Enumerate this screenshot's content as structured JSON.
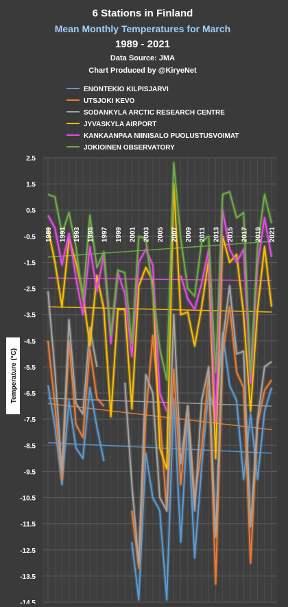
{
  "chart_data": {
    "type": "line",
    "title": "6 Stations in Finland",
    "subtitle": "Mean Monthly Temperatures for March",
    "years_label": "1989 - 2021",
    "source": "Data Source: JMA",
    "credit": "Chart Produced by @KiryeNet",
    "ylabel": "Temperature (°C)",
    "xlabel": "",
    "ylim": [
      -14.5,
      2.5
    ],
    "yticks": [
      "2.5",
      "1.5",
      "0.5",
      "-0.5",
      "-1.5",
      "-2.5",
      "-3.5",
      "-4.5",
      "-5.5",
      "-6.5",
      "-7.5",
      "-8.5",
      "-9.5",
      "-10.5",
      "-11.5",
      "-12.5",
      "-13.5",
      "-14.5"
    ],
    "x": [
      1989,
      1990,
      1991,
      1992,
      1993,
      1994,
      1995,
      1996,
      1997,
      1998,
      1999,
      2000,
      2001,
      2002,
      2003,
      2004,
      2005,
      2006,
      2007,
      2008,
      2009,
      2010,
      2011,
      2012,
      2013,
      2014,
      2015,
      2016,
      2017,
      2018,
      2019,
      2020,
      2021
    ],
    "xtick_labels": [
      "1989",
      "1991",
      "1993",
      "1995",
      "1997",
      "1999",
      "2001",
      "2003",
      "2005",
      "2007",
      "2009",
      "2011",
      "2013",
      "2015",
      "2017",
      "2019",
      "2021"
    ],
    "grid": true,
    "legend_position": "top",
    "series": [
      {
        "name": "ENONTEKIO KILPISJARVI",
        "color": "#5b9bd5",
        "values": [
          -6.2,
          -7.8,
          -10.0,
          -6.8,
          -8.6,
          -9.0,
          -6.3,
          -7.8,
          -9.1,
          null,
          null,
          null,
          -12.2,
          -14.4,
          -8.8,
          -10.5,
          -11.0,
          -14.4,
          -6.7,
          -12.2,
          -7.5,
          -12.8,
          -9.3,
          -6.4,
          -7.3,
          -4.2,
          -6.2,
          -6.8,
          -9.8,
          -7.3,
          -9.8,
          -7.2,
          -6.3
        ],
        "trend": [
          -8.4,
          -8.8
        ]
      },
      {
        "name": "UTSJOKI KEVO",
        "color": "#ed7d31",
        "values": [
          -4.5,
          -7.0,
          -9.8,
          -4.5,
          -7.7,
          -8.2,
          -4.8,
          -6.7,
          -7.0,
          null,
          null,
          null,
          -11.0,
          -13.2,
          -7.4,
          -4.3,
          -7.3,
          -11.0,
          -5.6,
          -10.0,
          -7.0,
          -10.5,
          -8.6,
          -5.7,
          -13.8,
          -5.0,
          -3.2,
          -5.7,
          -6.3,
          -13.0,
          -7.7,
          -6.4,
          -6.0
        ],
        "trend": [
          -6.9,
          -7.9
        ]
      },
      {
        "name": "SODANKYLA ARCTIC RESEARCH CENTRE",
        "color": "#a5a5a5",
        "values": [
          -2.6,
          -5.7,
          -9.5,
          -3.7,
          -6.9,
          -7.3,
          -4.0,
          -5.5,
          null,
          null,
          null,
          -6.1,
          -10.0,
          -13.0,
          -5.8,
          -6.5,
          -10.5,
          -11.0,
          -3.5,
          -9.2,
          -7.0,
          -11.0,
          -6.8,
          -5.5,
          -12.0,
          -4.5,
          -2.4,
          -5.0,
          -4.9,
          -11.6,
          -7.5,
          -5.5,
          -5.3
        ],
        "trend": [
          -6.7,
          -7.0
        ]
      },
      {
        "name": "JYVASKYLA AIRPORT",
        "color": "#ffc000",
        "values": [
          -0.2,
          -1.5,
          -3.2,
          -0.6,
          -1.5,
          -2.7,
          -4.7,
          -2.0,
          -3.3,
          -7.4,
          -3.3,
          -3.3,
          -7.1,
          -2.4,
          -1.7,
          -2.2,
          -8.6,
          -9.4,
          1.5,
          -3.5,
          -3.4,
          -4.7,
          -3.2,
          -1.4,
          -9.0,
          -0.5,
          -1.5,
          -1.2,
          -3.5,
          -7.2,
          -3.3,
          -0.9,
          -3.2
        ],
        "trend": [
          -3.2,
          -3.4
        ]
      },
      {
        "name": "KANKAANPAA NIINISALO PUOLUSTUSVOIMAT",
        "color": "#e84ce8",
        "values": [
          0.3,
          -0.2,
          -1.6,
          -0.4,
          -2.1,
          -3.5,
          -0.9,
          -2.6,
          -1.2,
          -4.6,
          -1.9,
          -2.7,
          -5.1,
          -1.5,
          -1.0,
          -1.6,
          -6.5,
          -7.2,
          null,
          -2.0,
          -2.9,
          -3.3,
          -2.3,
          -1.0,
          -7.6,
          0.5,
          -1.0,
          -1.5,
          -1.0,
          -6.1,
          -1.6,
          0.2,
          -1.3
        ],
        "trend": [
          -2.1,
          -2.2
        ]
      },
      {
        "name": "JOKIOINEN OBSERVATORY",
        "color": "#70ad47",
        "values": [
          1.1,
          1.0,
          -0.4,
          0.4,
          -0.9,
          -2.9,
          0.3,
          -1.7,
          -1.1,
          -4.3,
          -1.8,
          -1.9,
          -4.6,
          -0.5,
          -0.6,
          -2.6,
          -4.8,
          -6.0,
          2.3,
          -0.6,
          -2.5,
          -2.8,
          -0.7,
          -0.5,
          -5.7,
          1.1,
          1.2,
          0.2,
          0.4,
          -5.8,
          -0.9,
          1.1,
          0.0
        ],
        "trend": [
          -1.3,
          -0.7
        ]
      }
    ]
  }
}
